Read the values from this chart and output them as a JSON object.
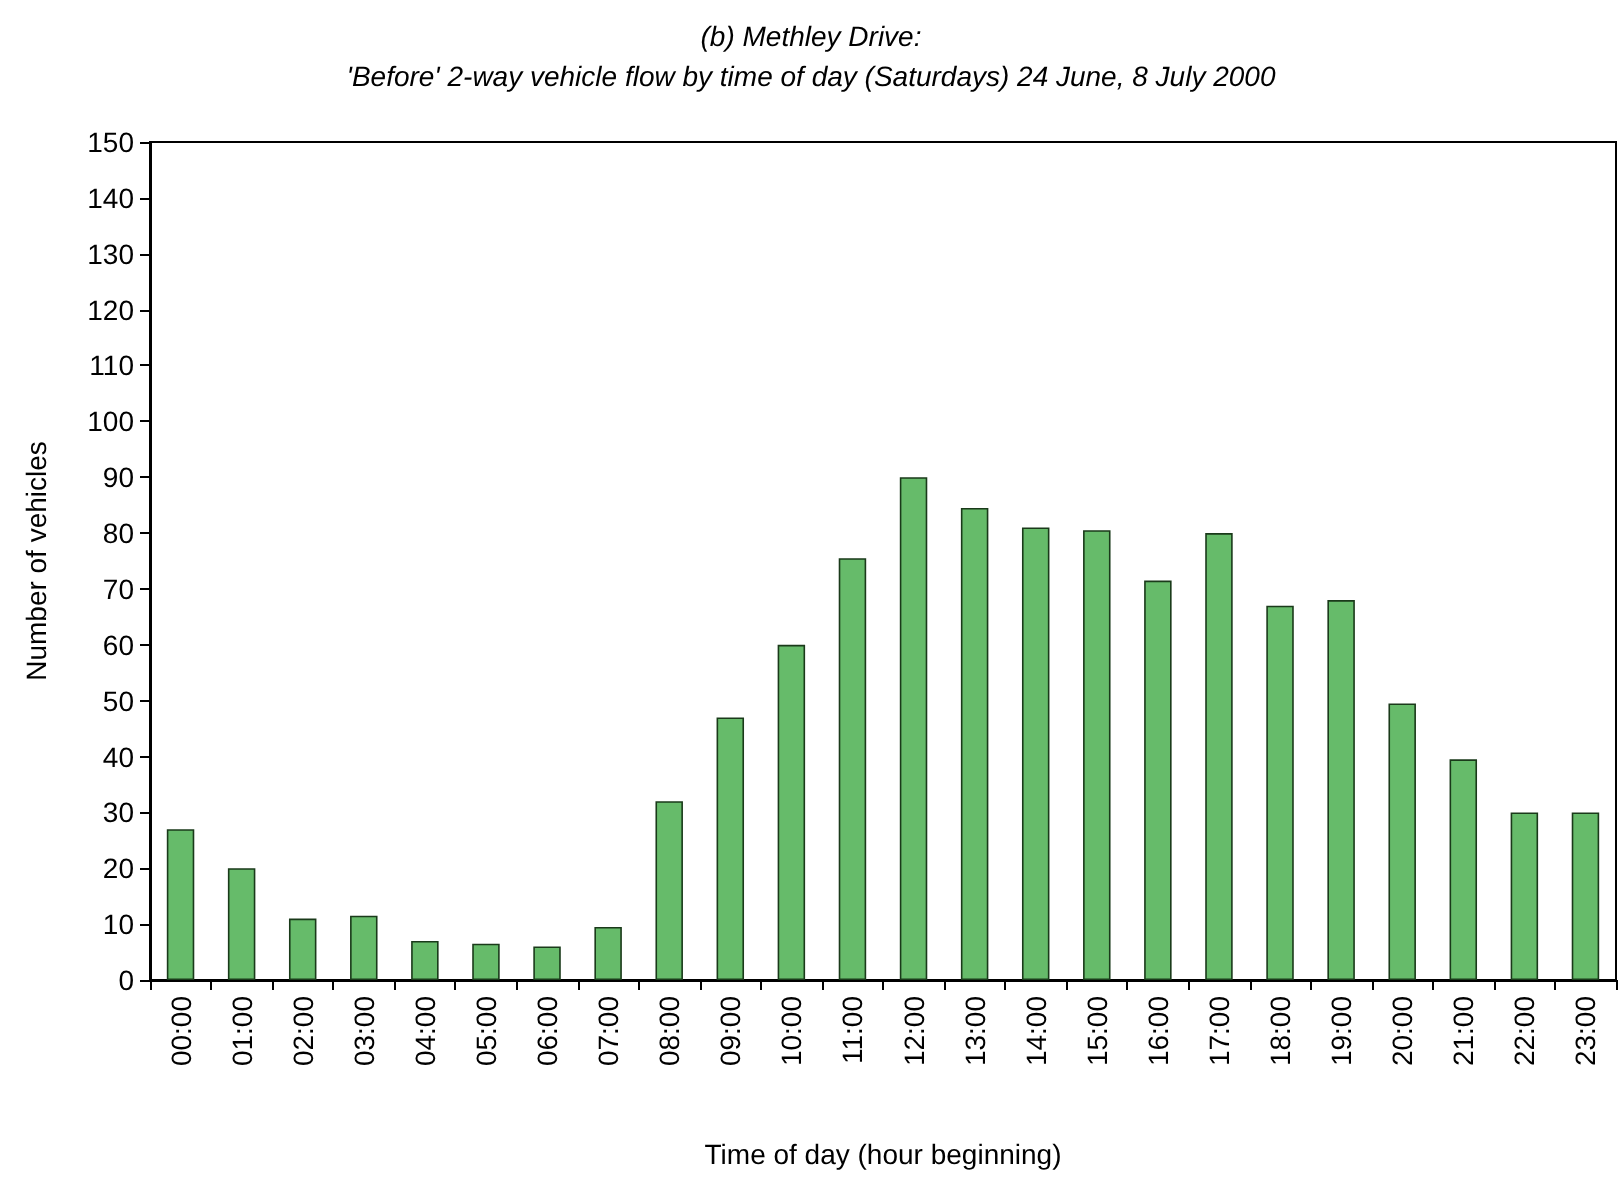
{
  "chart_data": {
    "type": "bar",
    "title": "(b) Methley Drive:",
    "subtitle": "'Before' 2-way vehicle flow by time of day (Saturdays) 24 June, 8 July 2000",
    "xlabel": "Time of day (hour beginning)",
    "ylabel": "Number of vehicles",
    "categories": [
      "00:00",
      "01:00",
      "02:00",
      "03:00",
      "04:00",
      "05:00",
      "06:00",
      "07:00",
      "08:00",
      "09:00",
      "10:00",
      "11:00",
      "12:00",
      "13:00",
      "14:00",
      "15:00",
      "16:00",
      "17:00",
      "18:00",
      "19:00",
      "20:00",
      "21:00",
      "22:00",
      "23:00"
    ],
    "values": [
      27,
      20,
      11,
      11.5,
      7,
      6.5,
      6,
      9.5,
      32,
      47,
      60,
      75.5,
      90,
      84.5,
      81,
      80.5,
      71.5,
      80,
      67,
      68,
      49.5,
      39.5,
      30,
      30
    ],
    "color": "#66bb6a",
    "ylim": [
      0,
      150
    ],
    "yticks": [
      0,
      10,
      20,
      30,
      40,
      50,
      60,
      70,
      80,
      90,
      100,
      110,
      120,
      130,
      140,
      150
    ],
    "grid": false
  }
}
